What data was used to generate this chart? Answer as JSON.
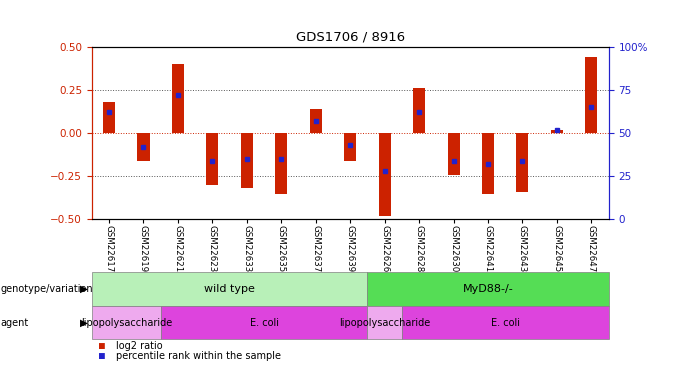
{
  "title": "GDS1706 / 8916",
  "samples": [
    "GSM22617",
    "GSM22619",
    "GSM22621",
    "GSM22623",
    "GSM22633",
    "GSM22635",
    "GSM22637",
    "GSM22639",
    "GSM22626",
    "GSM22628",
    "GSM22630",
    "GSM22641",
    "GSM22643",
    "GSM22645",
    "GSM22647"
  ],
  "log2_ratio": [
    0.18,
    -0.16,
    0.4,
    -0.3,
    -0.32,
    -0.35,
    0.14,
    -0.16,
    -0.48,
    0.26,
    -0.24,
    -0.35,
    -0.34,
    0.02,
    0.44
  ],
  "percentile_rank": [
    62,
    42,
    72,
    34,
    35,
    35,
    57,
    43,
    28,
    62,
    34,
    32,
    34,
    52,
    65
  ],
  "ylim": [
    -0.5,
    0.5
  ],
  "yticks_left": [
    -0.5,
    -0.25,
    0.0,
    0.25,
    0.5
  ],
  "yticks_right": [
    0,
    25,
    50,
    75,
    100
  ],
  "bar_color": "#cc2200",
  "dot_color": "#2222cc",
  "zero_line_color": "#cc2200",
  "bg_color": "#ffffff",
  "geno_groups": [
    {
      "label": "wild type",
      "xstart": -0.5,
      "xend": 7.5,
      "color": "#b8f0b8"
    },
    {
      "label": "MyD88-/-",
      "xstart": 7.5,
      "xend": 14.5,
      "color": "#55dd55"
    }
  ],
  "agent_groups": [
    {
      "label": "lipopolysaccharide",
      "xstart": -0.5,
      "xend": 1.5,
      "color": "#eeaaee"
    },
    {
      "label": "E. coli",
      "xstart": 1.5,
      "xend": 7.5,
      "color": "#dd44dd"
    },
    {
      "label": "lipopolysaccharide",
      "xstart": 7.5,
      "xend": 8.5,
      "color": "#eeaaee"
    },
    {
      "label": "E. coli",
      "xstart": 8.5,
      "xend": 14.5,
      "color": "#dd44dd"
    }
  ],
  "legend_items": [
    {
      "label": "log2 ratio",
      "color": "#cc2200"
    },
    {
      "label": "percentile rank within the sample",
      "color": "#2222cc"
    }
  ]
}
